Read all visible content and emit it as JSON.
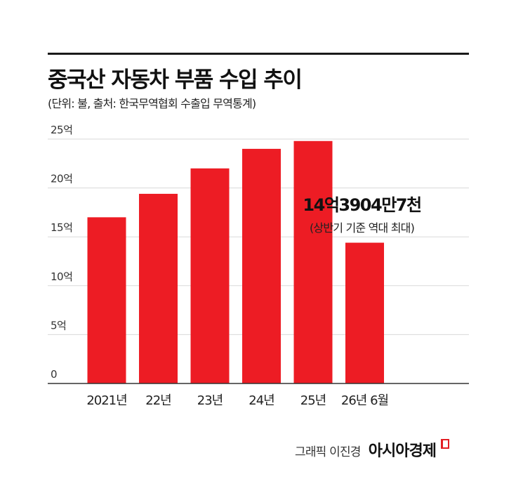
{
  "header": {
    "title": "중국산 자동차 부품 수입 추이",
    "subtitle": "(단위: 불, 출처: 한국무역협회 수출입 무역통계)"
  },
  "chart_data": {
    "type": "bar",
    "categories": [
      "2021년",
      "22년",
      "23년",
      "24년",
      "25년",
      "26년 6월"
    ],
    "values": [
      17.0,
      19.4,
      22.0,
      24.0,
      24.8,
      14.4
    ],
    "yticks": [
      0,
      5,
      10,
      15,
      20,
      25
    ],
    "ytick_labels": [
      "0",
      "5억",
      "10억",
      "15억",
      "20억",
      "25억"
    ],
    "ylim": [
      0,
      25
    ],
    "bar_color": "#ed1c24",
    "grid": true,
    "annotation": {
      "text": "14억3904만7천",
      "subtext": "(상반기 기준 역대 최대)",
      "target_index": 5
    }
  },
  "credit": {
    "text": "그래픽 이진경",
    "brand": "아시아경제"
  }
}
